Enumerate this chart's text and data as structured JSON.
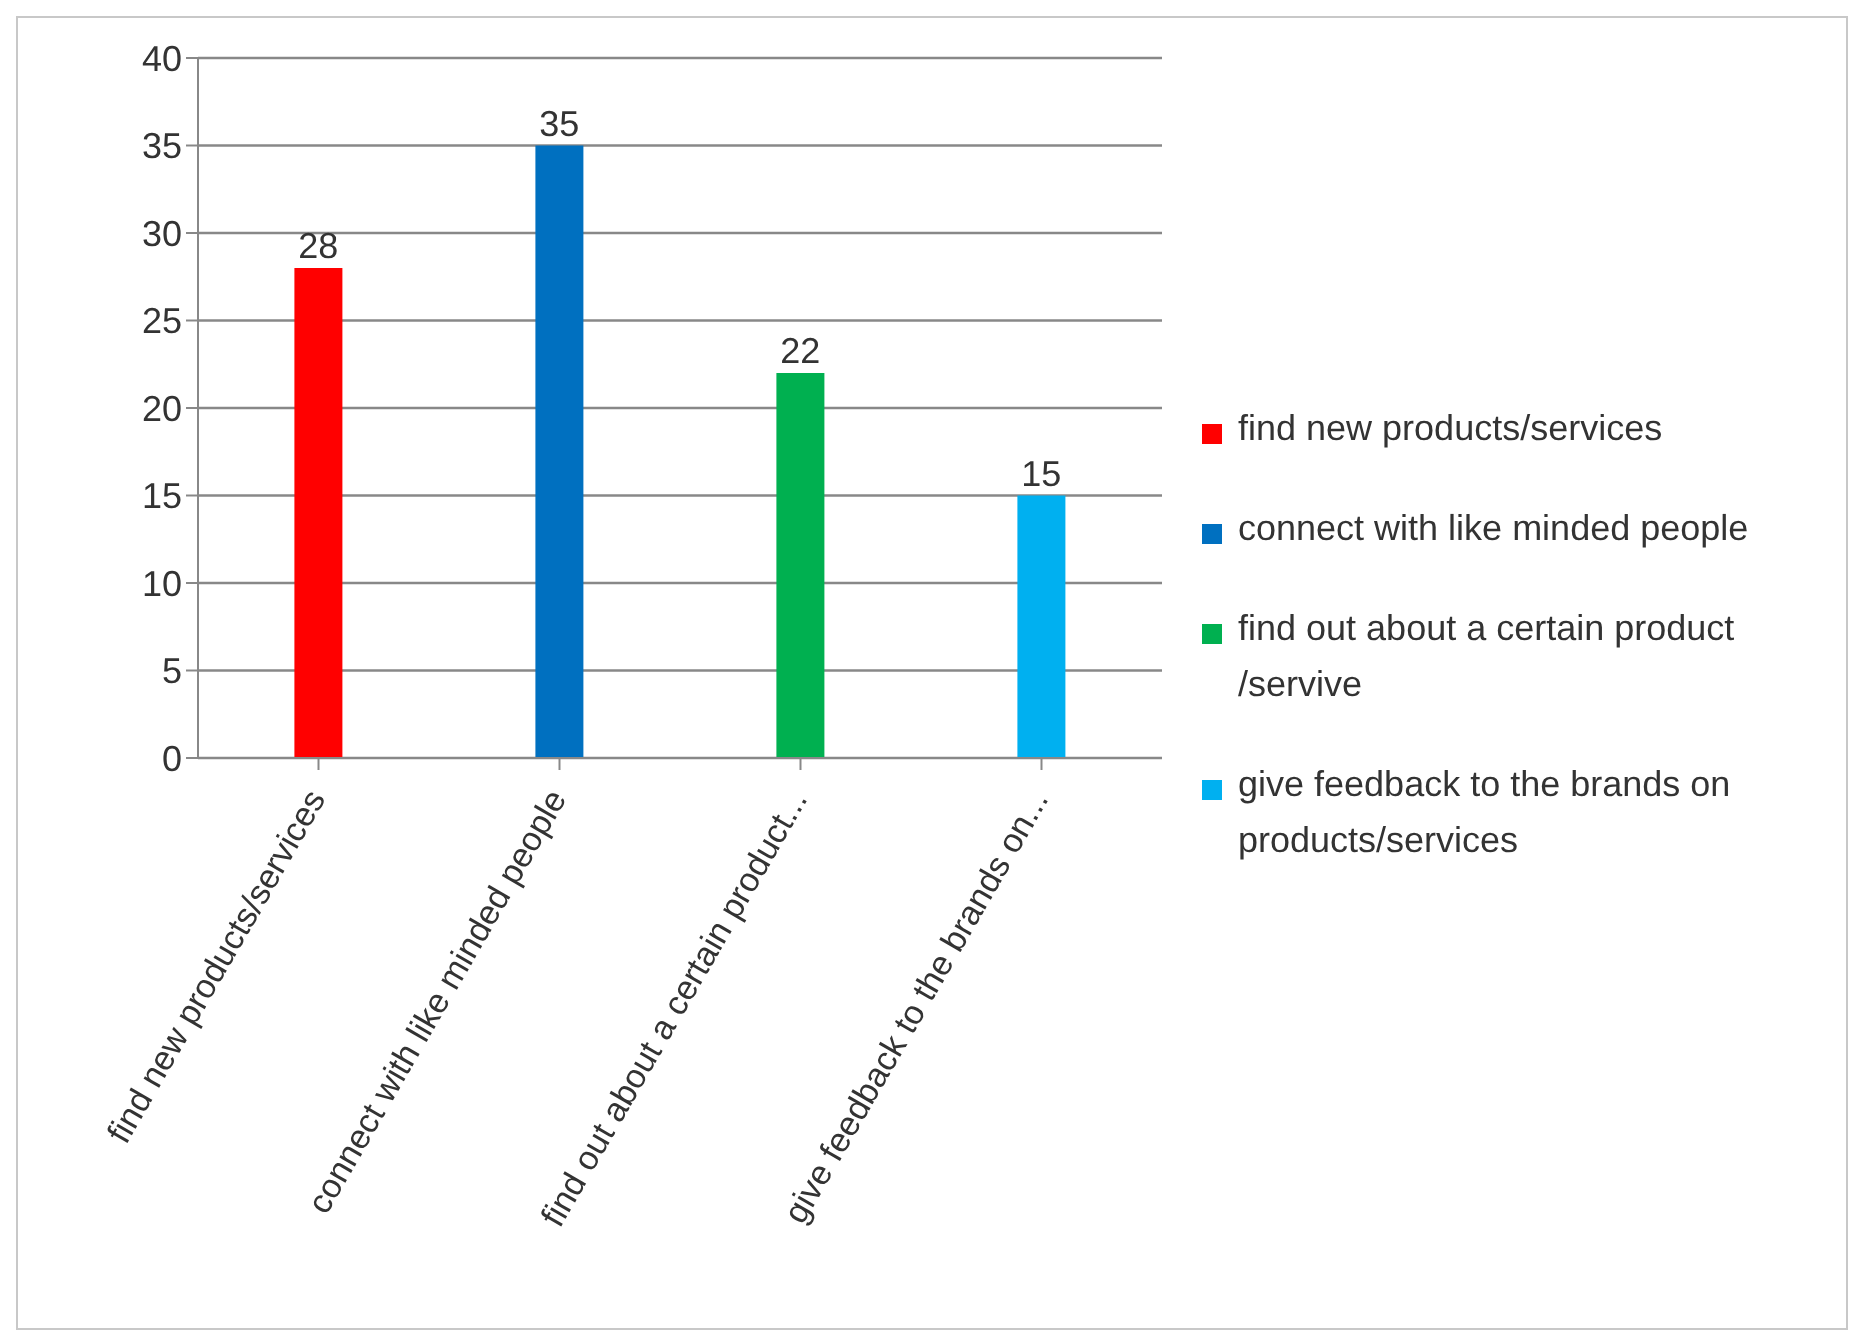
{
  "chart_data": {
    "type": "bar",
    "stacked": true,
    "categories": [
      "find new products/services",
      "connect with like minded people",
      "find out about a certain product...",
      "give feedback to the brands on..."
    ],
    "series": [
      {
        "name": "find new products/services",
        "color": "#ff0000",
        "values": [
          28,
          null,
          null,
          null
        ]
      },
      {
        "name": "connect with like minded people",
        "color": "#0070c0",
        "values": [
          null,
          35,
          null,
          null
        ]
      },
      {
        "name": "find out about a certain product /servive",
        "color": "#00b050",
        "values": [
          null,
          null,
          22,
          null
        ]
      },
      {
        "name": "give feedback to the brands on products/services",
        "color": "#00b0f0",
        "values": [
          null,
          null,
          null,
          15
        ]
      }
    ],
    "ylim": [
      0,
      40
    ],
    "yticks": [
      0,
      5,
      10,
      15,
      20,
      25,
      30,
      35,
      40
    ],
    "grid": "y",
    "legend": "right",
    "data_labels": true
  }
}
